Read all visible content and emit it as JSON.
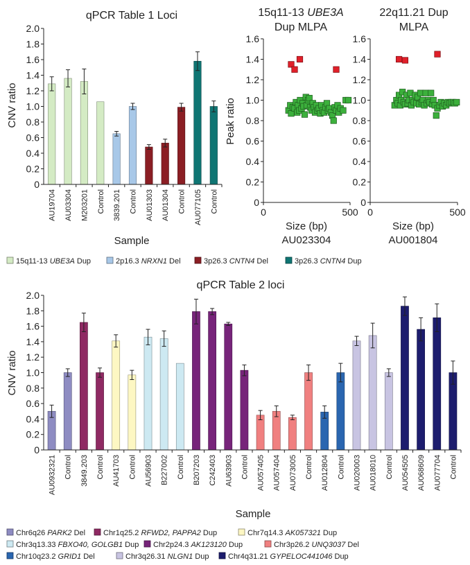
{
  "charts": {
    "qpcr1": {
      "type": "bar",
      "title": "qPCR Table 1 Loci",
      "xlabel": "Sample",
      "ylabel": "CNV ratio",
      "ylim": [
        0,
        2.0
      ],
      "yticks": [
        "0",
        "0.2",
        "0.4",
        "0.6",
        "0.8",
        "1.0",
        "1.2",
        "1.4",
        "1.6",
        "1.8",
        "2.0"
      ],
      "categories": [
        "AU19704",
        "AU03304",
        "M203201",
        "Control",
        "3839.201",
        "Control",
        "AU01303",
        "AU01304",
        "Control",
        "AU077105",
        "Control"
      ],
      "values": [
        1.29,
        1.36,
        1.32,
        1.06,
        0.65,
        1.0,
        0.48,
        0.53,
        0.99,
        1.58,
        1.0
      ],
      "errors": [
        0.09,
        0.11,
        0.16,
        0.0,
        0.03,
        0.04,
        0.03,
        0.05,
        0.05,
        0.12,
        0.07
      ],
      "groups": [
        0,
        0,
        0,
        0,
        1,
        1,
        2,
        2,
        2,
        3,
        3
      ],
      "colors": [
        "#d4ebc4",
        "#a8c8e8",
        "#8b1e24",
        "#0f7573"
      ],
      "legend": [
        {
          "pre": "15q11-13 ",
          "it": "UBE3A",
          "post": " Dup"
        },
        {
          "pre": "2p16.3 ",
          "it": "NRXN1",
          "post": " Del"
        },
        {
          "pre": "3p26.3 ",
          "it": "CNTN4",
          "post": " Del"
        },
        {
          "pre": "3p26.3 ",
          "it": "CNTN4",
          "post": " Dup"
        }
      ]
    },
    "mlpa1": {
      "type": "scatter",
      "title_line1_pre": "15q11-13 ",
      "title_line1_it": "UBE3A",
      "title_line2": "Dup MLPA",
      "xlabel": "Size (bp)",
      "sample": "AU023304",
      "ylabel": "Peak ratio",
      "xlim": [
        0,
        500
      ],
      "ylim": [
        0,
        1.6
      ],
      "xticks": [
        "0",
        "500"
      ],
      "yticks": [
        "0",
        "0.2",
        "0.4",
        "0.6",
        "0.8",
        "1.0",
        "1.2",
        "1.4",
        "1.6"
      ],
      "red_points": [
        [
          160,
          1.35
        ],
        [
          180,
          1.3
        ],
        [
          210,
          1.4
        ],
        [
          420,
          1.3
        ]
      ],
      "green_points": [
        [
          145,
          0.9
        ],
        [
          155,
          0.95
        ],
        [
          160,
          0.87
        ],
        [
          170,
          0.93
        ],
        [
          180,
          0.92
        ],
        [
          188,
          0.98
        ],
        [
          195,
          0.88
        ],
        [
          200,
          0.95
        ],
        [
          207,
          0.9
        ],
        [
          212,
          1.0
        ],
        [
          220,
          0.92
        ],
        [
          227,
          0.97
        ],
        [
          232,
          0.94
        ],
        [
          238,
          0.86
        ],
        [
          245,
          1.03
        ],
        [
          250,
          0.95
        ],
        [
          258,
          1.0
        ],
        [
          265,
          1.02
        ],
        [
          270,
          0.93
        ],
        [
          278,
          0.9
        ],
        [
          285,
          0.97
        ],
        [
          292,
          0.93
        ],
        [
          298,
          0.88
        ],
        [
          305,
          0.95
        ],
        [
          312,
          0.9
        ],
        [
          320,
          0.92
        ],
        [
          328,
          0.87
        ],
        [
          335,
          0.95
        ],
        [
          342,
          0.9
        ],
        [
          350,
          0.88
        ],
        [
          358,
          0.93
        ],
        [
          366,
          0.97
        ],
        [
          373,
          0.9
        ],
        [
          380,
          0.92
        ],
        [
          390,
          0.88
        ],
        [
          398,
          0.85
        ],
        [
          405,
          0.8
        ],
        [
          412,
          0.93
        ],
        [
          420,
          0.9
        ],
        [
          428,
          0.95
        ],
        [
          435,
          0.88
        ],
        [
          445,
          0.92
        ],
        [
          460,
          0.9
        ],
        [
          475,
          1.0
        ],
        [
          490,
          1.0
        ]
      ]
    },
    "mlpa2": {
      "type": "scatter",
      "title_line1": "22q11.21 Dup",
      "title_line2": "MLPA",
      "xlabel": "Size (bp)",
      "sample": "AU001804",
      "xlim": [
        0,
        500
      ],
      "ylim": [
        0,
        1.6
      ],
      "xticks": [
        "0",
        "500"
      ],
      "yticks": [
        "0",
        "0.2",
        "0.4",
        "0.6",
        "0.8",
        "1.0",
        "1.2",
        "1.4",
        "1.6"
      ],
      "red_points": [
        [
          165,
          1.4
        ],
        [
          200,
          1.39
        ],
        [
          385,
          1.45
        ]
      ],
      "green_points": [
        [
          140,
          0.95
        ],
        [
          150,
          1.0
        ],
        [
          158,
          0.97
        ],
        [
          165,
          1.05
        ],
        [
          172,
          0.95
        ],
        [
          178,
          1.0
        ],
        [
          185,
          1.08
        ],
        [
          192,
          0.98
        ],
        [
          200,
          0.96
        ],
        [
          208,
          1.05
        ],
        [
          215,
          0.97
        ],
        [
          222,
          1.0
        ],
        [
          230,
          1.07
        ],
        [
          236,
          0.95
        ],
        [
          242,
          1.0
        ],
        [
          250,
          0.98
        ],
        [
          258,
          1.05
        ],
        [
          265,
          0.97
        ],
        [
          272,
          1.03
        ],
        [
          280,
          0.96
        ],
        [
          288,
          1.07
        ],
        [
          295,
          0.98
        ],
        [
          302,
          1.0
        ],
        [
          310,
          0.95
        ],
        [
          318,
          1.07
        ],
        [
          325,
          0.97
        ],
        [
          332,
          1.0
        ],
        [
          340,
          0.98
        ],
        [
          348,
          1.07
        ],
        [
          355,
          0.96
        ],
        [
          362,
          1.0
        ],
        [
          370,
          0.95
        ],
        [
          378,
          0.85
        ],
        [
          385,
          0.92
        ],
        [
          395,
          0.95
        ],
        [
          405,
          0.98
        ],
        [
          415,
          0.94
        ],
        [
          425,
          0.97
        ],
        [
          435,
          0.95
        ],
        [
          445,
          0.98
        ],
        [
          455,
          0.97
        ],
        [
          465,
          0.98
        ],
        [
          475,
          0.98
        ],
        [
          485,
          0.97
        ],
        [
          495,
          0.98
        ]
      ]
    },
    "qpcr2": {
      "type": "bar",
      "title": "qPCR Table 2 loci",
      "xlabel": "Sample",
      "ylabel": "CNV ratio",
      "ylim": [
        0,
        2.0
      ],
      "yticks": [
        "0",
        "0.2",
        "0.4",
        "0.6",
        "0.8",
        "1.0",
        "1.2",
        "1.4",
        "1.6",
        "1.8",
        "2.0"
      ],
      "categories": [
        "AU0932321",
        "Control",
        "3849.203",
        "Control",
        "AU41703",
        "Control",
        "AU56903",
        "B227002",
        "Control",
        "B207203",
        "C242403",
        "AU63903",
        "Control",
        "AU057405",
        "AU057404",
        "AU073005",
        "Control",
        "AU012804",
        "Control",
        "AU020003",
        "AU018010",
        "Control",
        "AU054505",
        "AU068609",
        "AU077704",
        "Control"
      ],
      "values": [
        0.5,
        1.0,
        1.65,
        1.0,
        1.41,
        0.97,
        1.46,
        1.44,
        1.12,
        1.79,
        1.79,
        1.63,
        1.03,
        0.45,
        0.5,
        0.42,
        1.0,
        0.49,
        1.0,
        1.41,
        1.48,
        1.0,
        1.86,
        1.56,
        1.71,
        1.0
      ],
      "errors": [
        0.08,
        0.05,
        0.12,
        0.06,
        0.08,
        0.06,
        0.1,
        0.1,
        0.0,
        0.16,
        0.04,
        0.02,
        0.07,
        0.06,
        0.07,
        0.03,
        0.1,
        0.08,
        0.12,
        0.06,
        0.16,
        0.05,
        0.12,
        0.15,
        0.18,
        0.15
      ],
      "groups": [
        0,
        0,
        1,
        1,
        2,
        2,
        3,
        3,
        3,
        4,
        4,
        4,
        4,
        5,
        5,
        5,
        5,
        6,
        6,
        7,
        7,
        7,
        8,
        8,
        8,
        8
      ],
      "colors": [
        "#8e8cc2",
        "#8f2a63",
        "#fdf7c3",
        "#cde9f2",
        "#77247a",
        "#f08080",
        "#2a66b0",
        "#c8c4e2",
        "#1d1d6e"
      ],
      "legend": [
        {
          "pre": "Chr6q26 ",
          "it": "PARK2",
          "post": " Del"
        },
        {
          "pre": "Chr1q25.2 ",
          "it": "RFWD2, PAPPA2",
          "post": " Dup"
        },
        {
          "pre": "Chr7q14.3 ",
          "it": "AK057321",
          "post": " Dup"
        },
        {
          "pre": "Chr3q13.33 ",
          "it": "FBXO40, GOLGB1",
          "post": " Dup"
        },
        {
          "pre": "Chr2p24.3 ",
          "it": "AK123120",
          "post": " Dup"
        },
        {
          "pre": "Chr3p26.2 ",
          "it": "UNQ3037",
          "post": " Del"
        },
        {
          "pre": "Chr10q23.2 ",
          "it": "GRID1",
          "post": " Del"
        },
        {
          "pre": "Chr3q26.31 ",
          "it": "NLGN1",
          "post": " Dup"
        },
        {
          "pre": "Chr4q31.21 ",
          "it": "GYPELOC441046",
          "post": " Dup"
        }
      ]
    }
  },
  "colors": {
    "red_marker": "#e0202a",
    "green_marker": "#3cb03c"
  }
}
